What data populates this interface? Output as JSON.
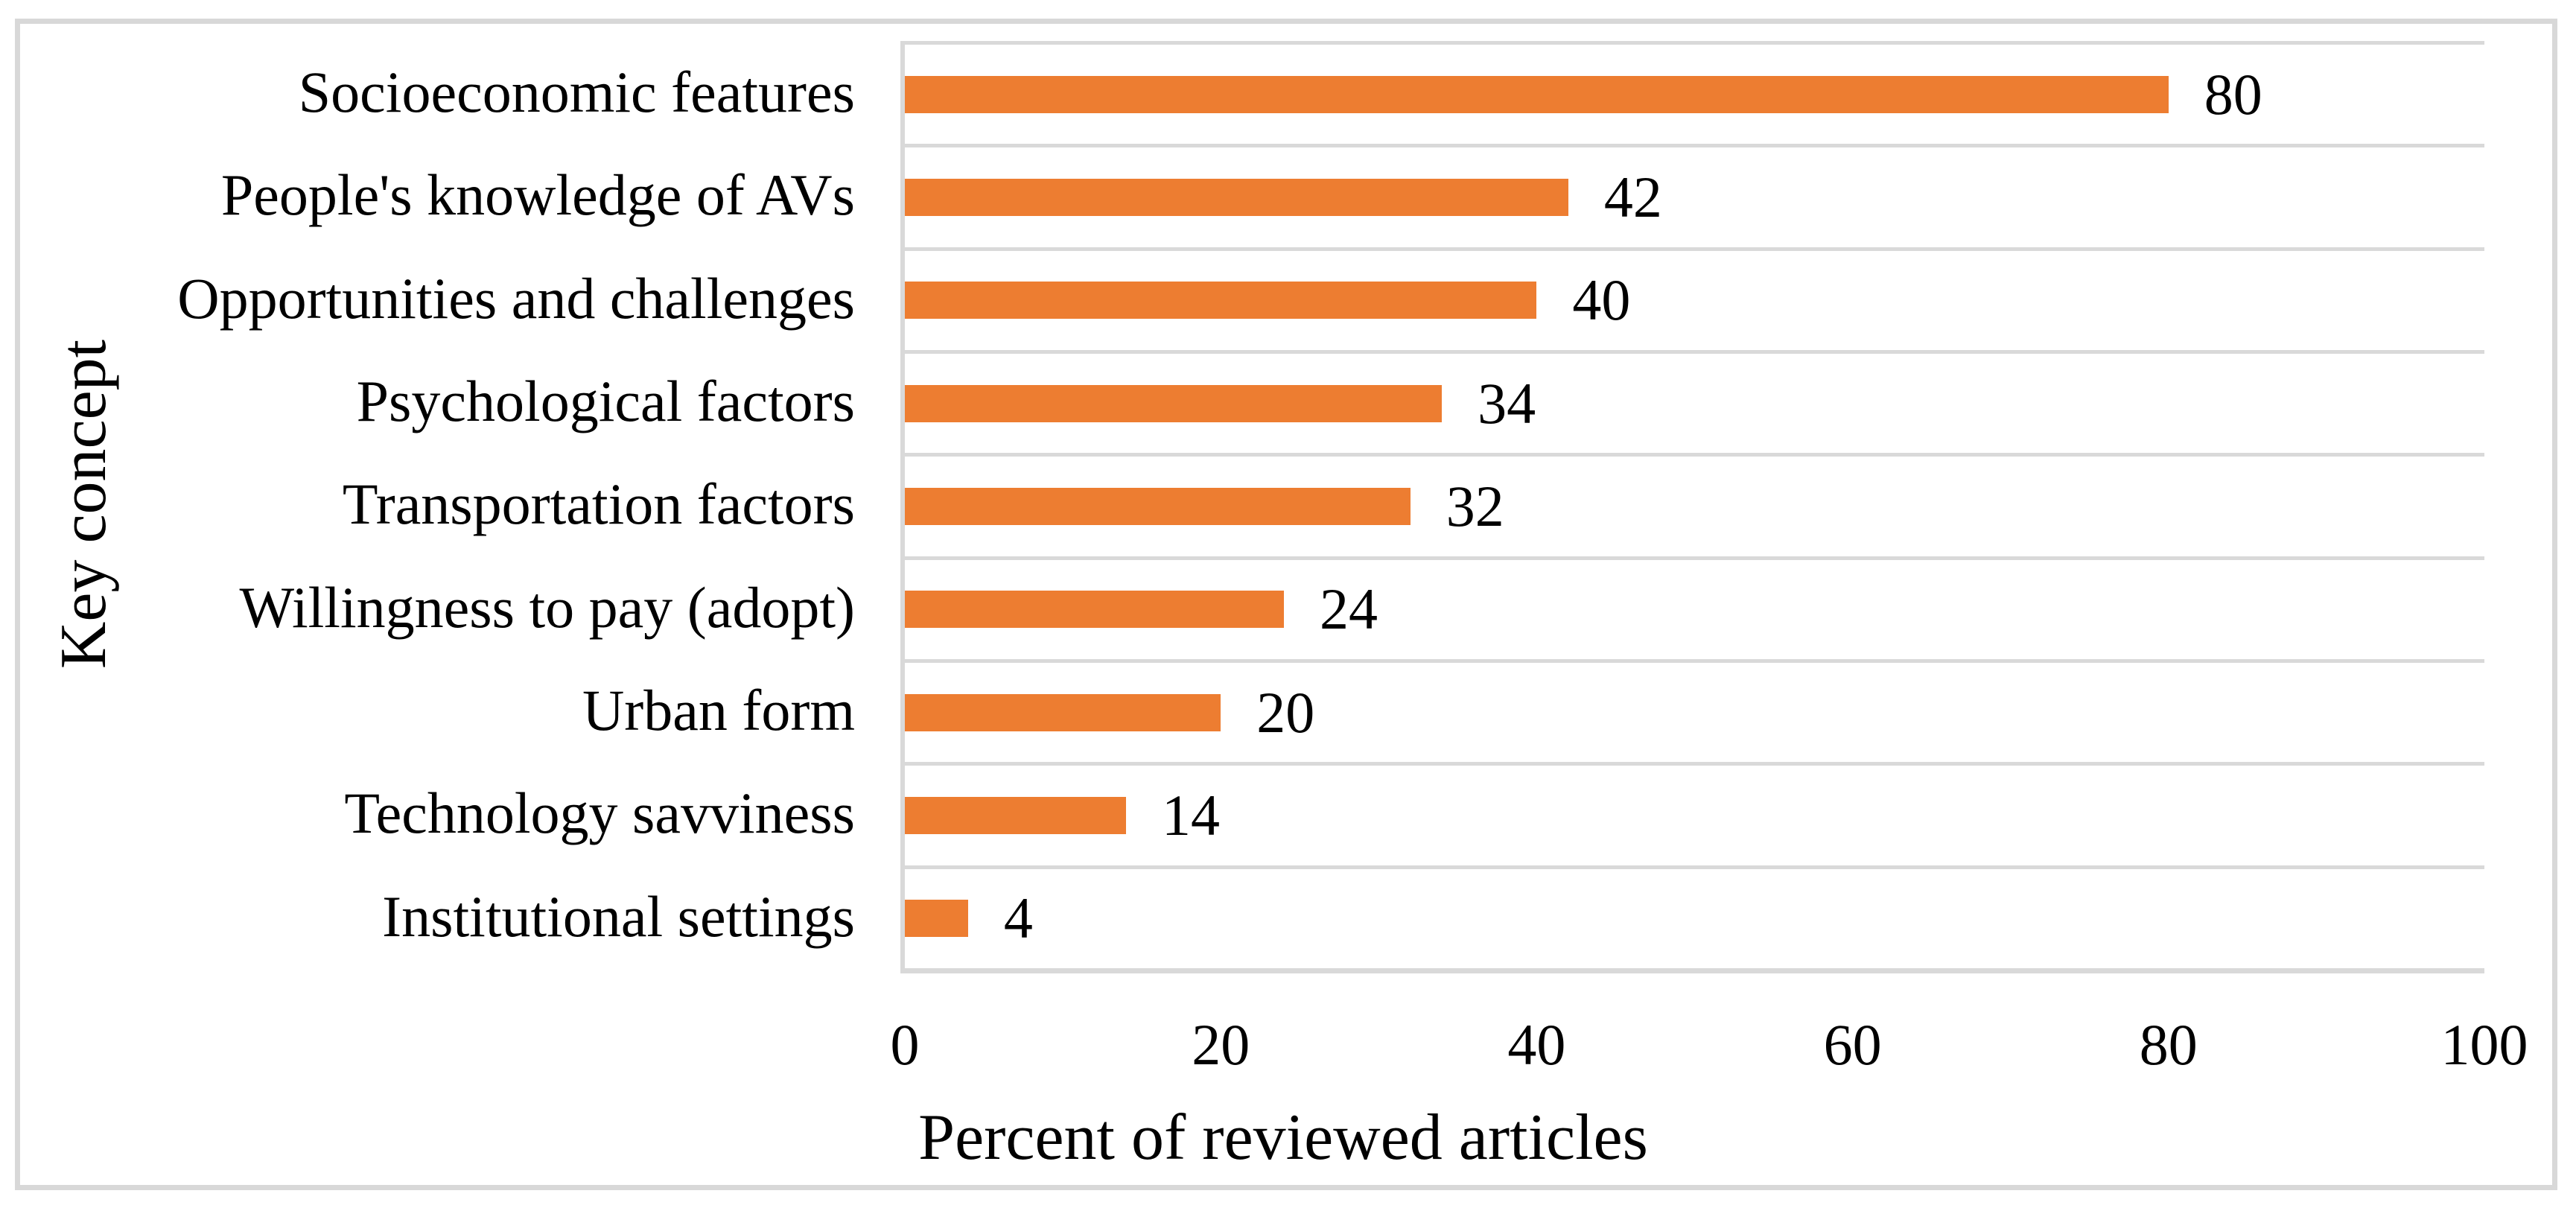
{
  "chart_data": {
    "type": "bar",
    "orientation": "horizontal",
    "categories": [
      "Socioeconomic features",
      "People's knowledge of AVs",
      "Opportunities and challenges",
      "Psychological factors",
      "Transportation factors",
      "Willingness to pay (adopt)",
      "Urban form",
      "Technology savviness",
      "Institutional settings"
    ],
    "values": [
      80,
      42,
      40,
      34,
      32,
      24,
      20,
      14,
      4
    ],
    "data_labels": [
      "80",
      "42",
      "40",
      "34",
      "32",
      "24",
      "20",
      "14",
      "4"
    ],
    "xlabel": "Percent of reviewed articles",
    "ylabel": "Key concept",
    "xlim": [
      0,
      100
    ],
    "xticks": [
      "0",
      "20",
      "40",
      "60",
      "80",
      "100"
    ],
    "xtick_values": [
      0,
      20,
      40,
      60,
      80,
      100
    ],
    "grid": "horizontal category separator lines only",
    "legend": "none",
    "colors": {
      "bar": "#ED7D31",
      "gridline": "#D9D9D9",
      "frame": "#D8D8D8",
      "text": "#000000",
      "background": "#FFFFFF"
    }
  }
}
